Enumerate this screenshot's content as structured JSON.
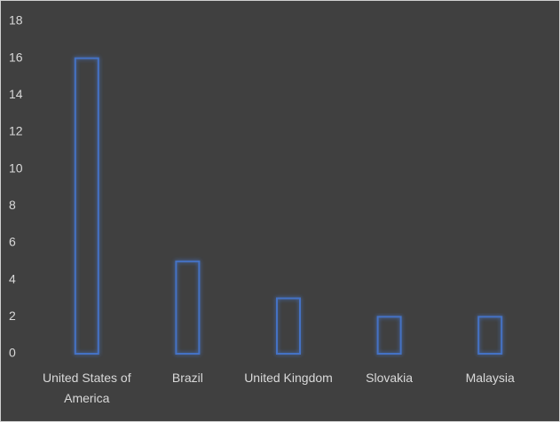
{
  "chart_data": {
    "type": "bar",
    "categories": [
      "United States of America",
      "Brazil",
      "United Kingdom",
      "Slovakia",
      "Malaysia"
    ],
    "values": [
      16,
      5,
      3,
      2,
      2
    ],
    "color": "#4472c4",
    "ylim": [
      0,
      18
    ],
    "yticks": [
      0,
      2,
      4,
      6,
      8,
      10,
      12,
      14,
      16,
      18
    ],
    "grid": false
  }
}
